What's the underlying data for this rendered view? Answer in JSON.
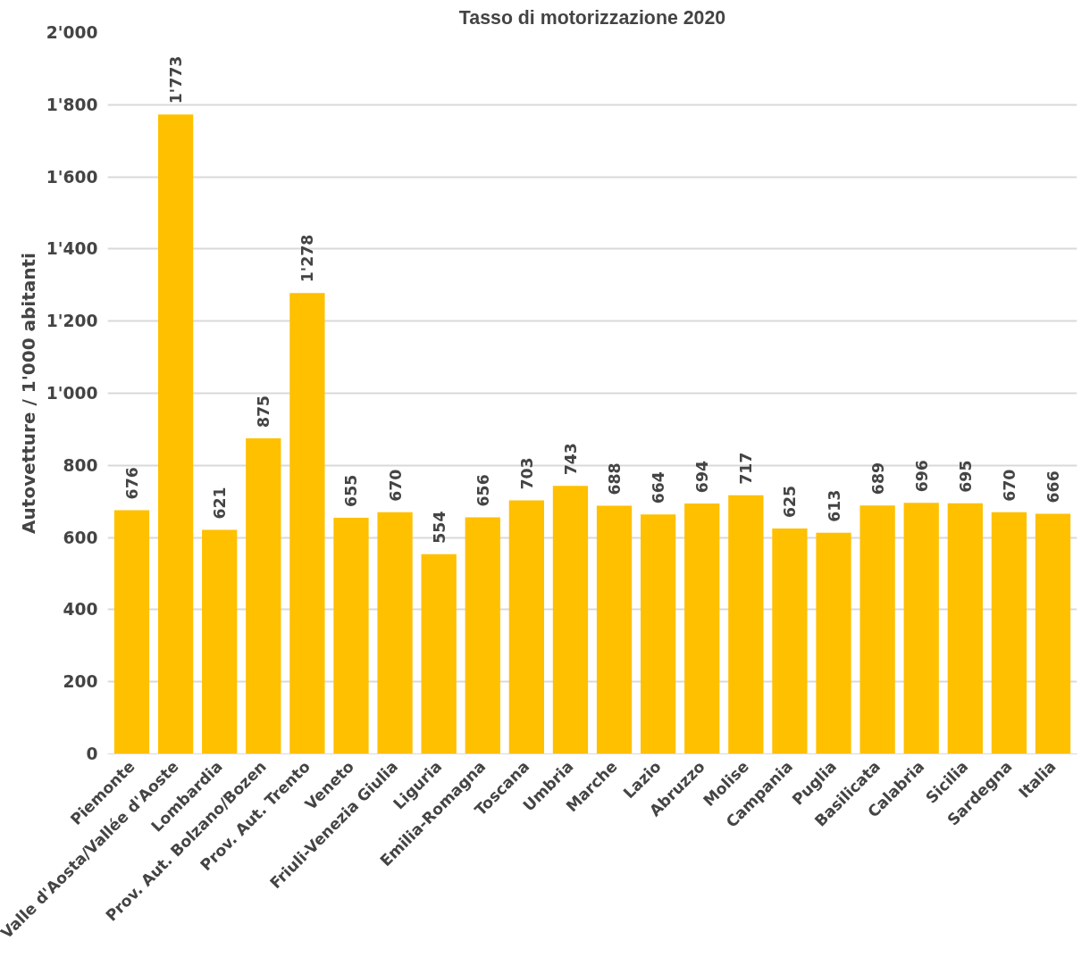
{
  "chart_data": {
    "type": "bar",
    "title": "Tasso di motorizzazione 2020",
    "ylabel": "Autovetture / 1'000 abitanti",
    "categories": [
      "Piemonte",
      "Valle d'Aosta/Vallée d'Aoste",
      "Lombardia",
      "Prov. Aut. Bolzano/Bozen",
      "Prov. Aut. Trento",
      "Veneto",
      "Friuli-Venezia Giulia",
      "Liguria",
      "Emilia-Romagna",
      "Toscana",
      "Umbria",
      "Marche",
      "Lazio",
      "Abruzzo",
      "Molise",
      "Campania",
      "Puglia",
      "Basilicata",
      "Calabria",
      "Sicilia",
      "Sardegna",
      "Italia"
    ],
    "values": [
      676,
      1773,
      621,
      875,
      1278,
      655,
      670,
      554,
      656,
      703,
      743,
      688,
      664,
      694,
      717,
      625,
      613,
      689,
      696,
      695,
      670,
      666
    ],
    "value_labels": [
      "676",
      "1'773",
      "621",
      "875",
      "1'278",
      "655",
      "670",
      "554",
      "656",
      "703",
      "743",
      "688",
      "664",
      "694",
      "717",
      "625",
      "613",
      "689",
      "696",
      "695",
      "670",
      "666"
    ],
    "color": "#ffc000",
    "ylim": [
      0,
      2000
    ],
    "yticks": [
      {
        "value": 0,
        "label": "0"
      },
      {
        "value": 200,
        "label": "200"
      },
      {
        "value": 400,
        "label": "400"
      },
      {
        "value": 600,
        "label": "600"
      },
      {
        "value": 800,
        "label": "800"
      },
      {
        "value": 1000,
        "label": "1'000"
      },
      {
        "value": 1200,
        "label": "1'200"
      },
      {
        "value": 1400,
        "label": "1'400"
      },
      {
        "value": 1600,
        "label": "1'600"
      },
      {
        "value": 1800,
        "label": "1'800"
      },
      {
        "value": 2000,
        "label": "2'000"
      }
    ],
    "grid": "y"
  }
}
